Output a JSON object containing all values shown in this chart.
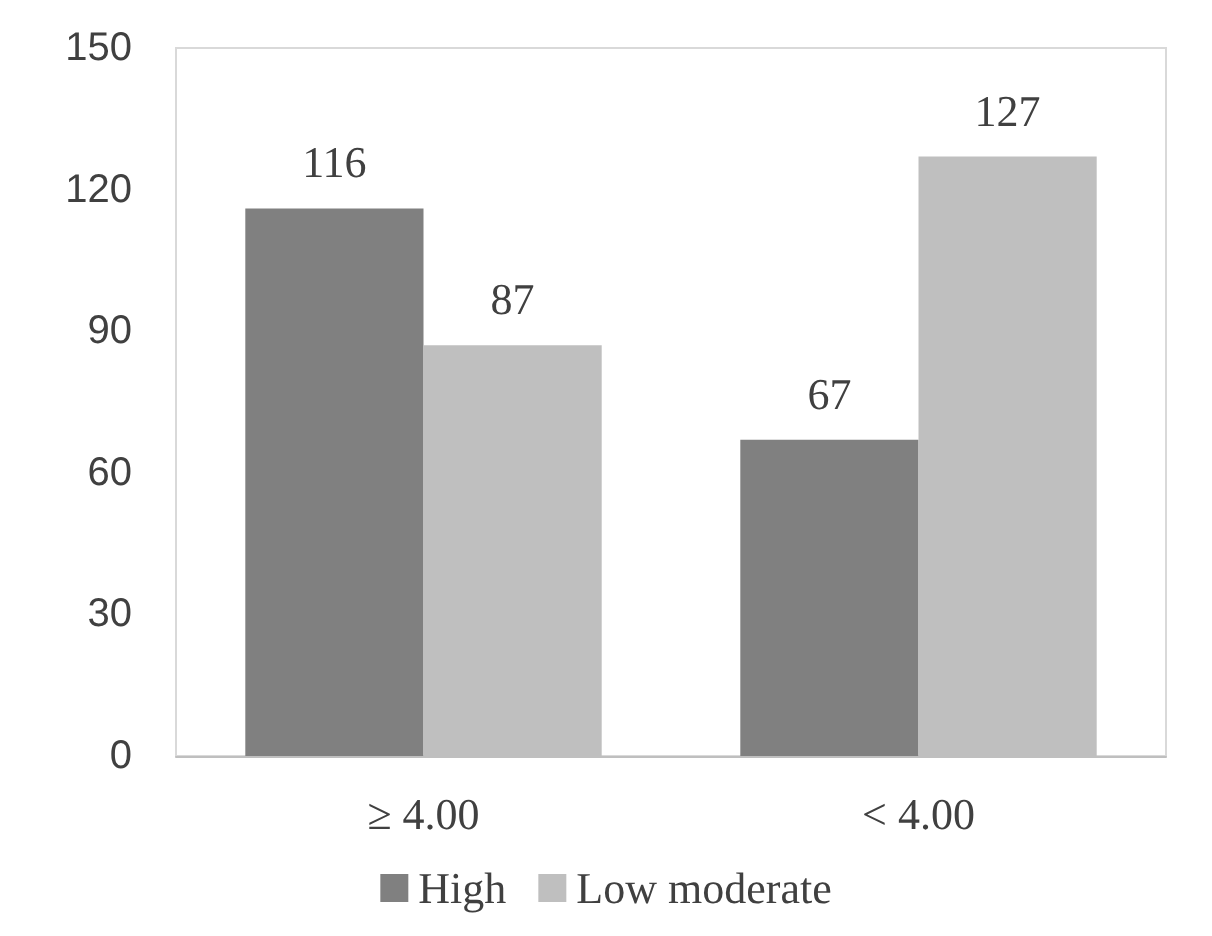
{
  "chart_data": {
    "type": "bar",
    "categories": [
      "≥ 4.00",
      "< 4.00"
    ],
    "series": [
      {
        "name": "High",
        "color": "#808080",
        "values": [
          116,
          67
        ]
      },
      {
        "name": "Low moderate",
        "color": "#bfbfbf",
        "values": [
          87,
          127
        ]
      }
    ],
    "ylim": [
      0,
      150
    ],
    "yticks": [
      0,
      30,
      60,
      90,
      120,
      150
    ],
    "data_labels": true,
    "legend": "bottom"
  }
}
